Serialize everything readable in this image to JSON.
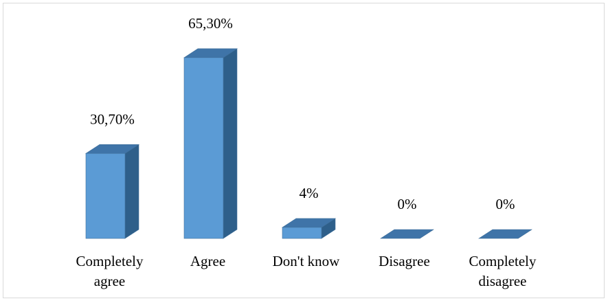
{
  "chart_data": {
    "type": "bar",
    "style": "3d-column",
    "categories": [
      [
        "Completely",
        "agree"
      ],
      [
        "Agree"
      ],
      [
        "Don't know"
      ],
      [
        "Disagree"
      ],
      [
        "Completely",
        "disagree"
      ]
    ],
    "values": [
      30.7,
      65.3,
      4,
      0,
      0
    ],
    "value_labels": [
      "30,70%",
      "65,30%",
      "4%",
      "0%",
      "0%"
    ],
    "unit": "%",
    "title": "",
    "xlabel": "",
    "ylabel": "",
    "ylim": [
      0,
      70
    ],
    "grid": false,
    "legend": "none",
    "colors": {
      "front": "#5b9bd5",
      "side": "#2e5f8a",
      "top": "#3f74a8",
      "edge": "#41719c",
      "frame": "#d9d9d9"
    }
  }
}
